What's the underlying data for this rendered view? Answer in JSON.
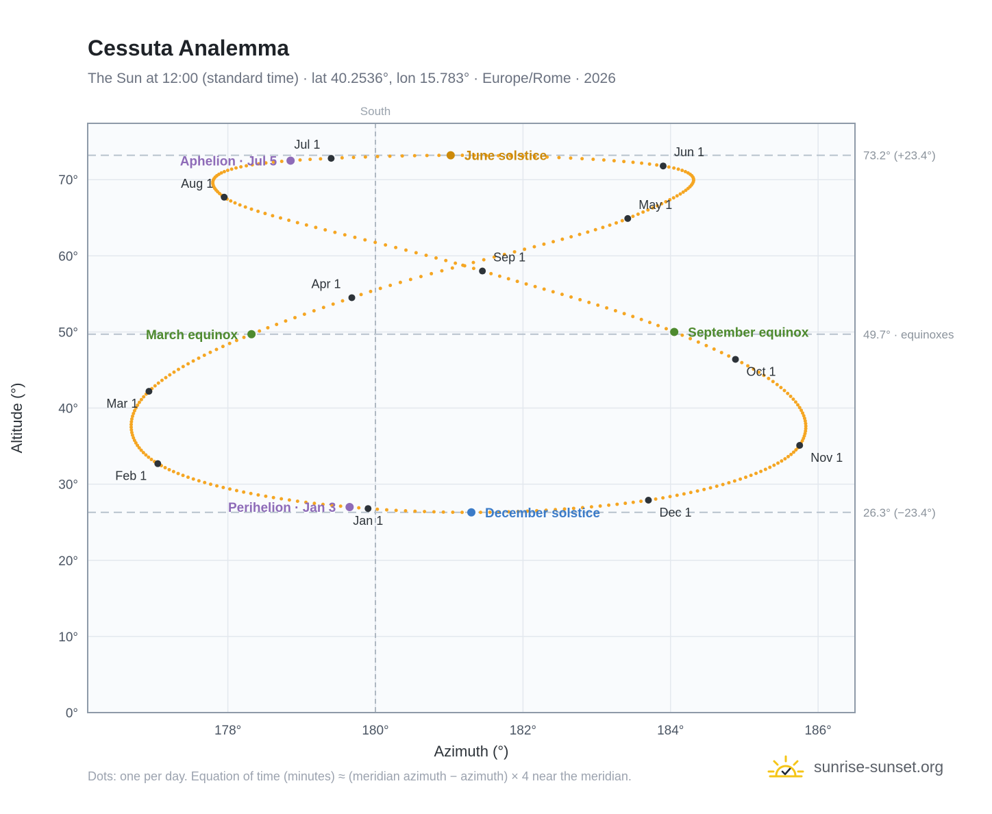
{
  "page": {
    "title": "Cessuta Analemma",
    "subtitle": "The Sun at 12:00 (standard time) · lat 40.2536°, lon 15.783° · Europe/Rome · 2026",
    "footnote": "Dots: one per day. Equation of time (minutes) ≈ (meridian azimuth − azimuth) × 4 near the meridian.",
    "brand": "sunrise-sunset.org",
    "brand_icon": "sun-check-icon"
  },
  "chart_data": {
    "type": "scatter",
    "xlabel": "Azimuth (°)",
    "ylabel": "Altitude (°)",
    "xlim": [
      176.1,
      186.5
    ],
    "ylim": [
      0,
      77.4
    ],
    "x_ticks": [
      178,
      180,
      182,
      184,
      186
    ],
    "x_tick_labels": [
      "178°",
      "180°",
      "182°",
      "184°",
      "186°"
    ],
    "y_ticks": [
      0,
      10,
      20,
      30,
      40,
      50,
      60,
      70
    ],
    "y_tick_labels": [
      "0°",
      "10°",
      "20°",
      "30°",
      "40°",
      "50°",
      "60°",
      "70°"
    ],
    "grid": true,
    "meridian": {
      "x": 180,
      "label": "South"
    },
    "reference_lines": [
      {
        "y": 73.2,
        "label": "73.2° (+23.4°)"
      },
      {
        "y": 49.7,
        "label": "49.7° · equinoxes"
      },
      {
        "y": 26.3,
        "label": "26.3° (−23.4°)"
      }
    ],
    "series_color": "#f5a623",
    "month_markers": [
      {
        "label": "Jan 1",
        "doy": 0,
        "x": 179.9,
        "y": 26.8,
        "anchor": "below"
      },
      {
        "label": "Feb 1",
        "doy": 31,
        "x": 177.05,
        "y": 32.7,
        "anchor": "below-left"
      },
      {
        "label": "Mar 1",
        "doy": 59,
        "x": 176.93,
        "y": 42.2,
        "anchor": "below-left"
      },
      {
        "label": "Apr 1",
        "doy": 90,
        "x": 179.68,
        "y": 54.5,
        "anchor": "above-left"
      },
      {
        "label": "May 1",
        "doy": 120,
        "x": 183.42,
        "y": 64.9,
        "anchor": "above-right"
      },
      {
        "label": "Jun 1",
        "doy": 151,
        "x": 183.9,
        "y": 71.8,
        "anchor": "above-right"
      },
      {
        "label": "Jul 1",
        "doy": 181,
        "x": 179.4,
        "y": 72.8,
        "anchor": "above-left"
      },
      {
        "label": "Aug 1",
        "doy": 212,
        "x": 177.95,
        "y": 67.7,
        "anchor": "above-left"
      },
      {
        "label": "Sep 1",
        "doy": 243,
        "x": 181.45,
        "y": 58.0,
        "anchor": "above-right"
      },
      {
        "label": "Oct 1",
        "doy": 273,
        "x": 184.88,
        "y": 46.4,
        "anchor": "below-right"
      },
      {
        "label": "Nov 1",
        "doy": 304,
        "x": 185.75,
        "y": 35.1,
        "anchor": "below-right"
      },
      {
        "label": "Dec 1",
        "doy": 334,
        "x": 183.7,
        "y": 27.9,
        "anchor": "below-right"
      }
    ],
    "events": [
      {
        "label": "Perihelion · Jan 3",
        "doy": 2,
        "x": 179.65,
        "y": 27.0,
        "color": "#8e6bb8",
        "side": "left"
      },
      {
        "label": "March equinox",
        "doy": 79,
        "x": 178.32,
        "y": 49.7,
        "color": "#4e8a2e",
        "side": "left"
      },
      {
        "label": "June solstice",
        "doy": 171,
        "x": 181.02,
        "y": 73.2,
        "color": "#cc8a0a",
        "side": "right"
      },
      {
        "label": "Aphelion · Jul 5",
        "doy": 185,
        "x": 178.85,
        "y": 72.5,
        "color": "#8e6bb8",
        "side": "left"
      },
      {
        "label": "September equinox",
        "doy": 265,
        "x": 184.05,
        "y": 50.0,
        "color": "#4e8a2e",
        "side": "right"
      },
      {
        "label": "December solstice",
        "doy": 354,
        "x": 181.3,
        "y": 26.3,
        "color": "#3b7bc8",
        "side": "right"
      }
    ]
  }
}
